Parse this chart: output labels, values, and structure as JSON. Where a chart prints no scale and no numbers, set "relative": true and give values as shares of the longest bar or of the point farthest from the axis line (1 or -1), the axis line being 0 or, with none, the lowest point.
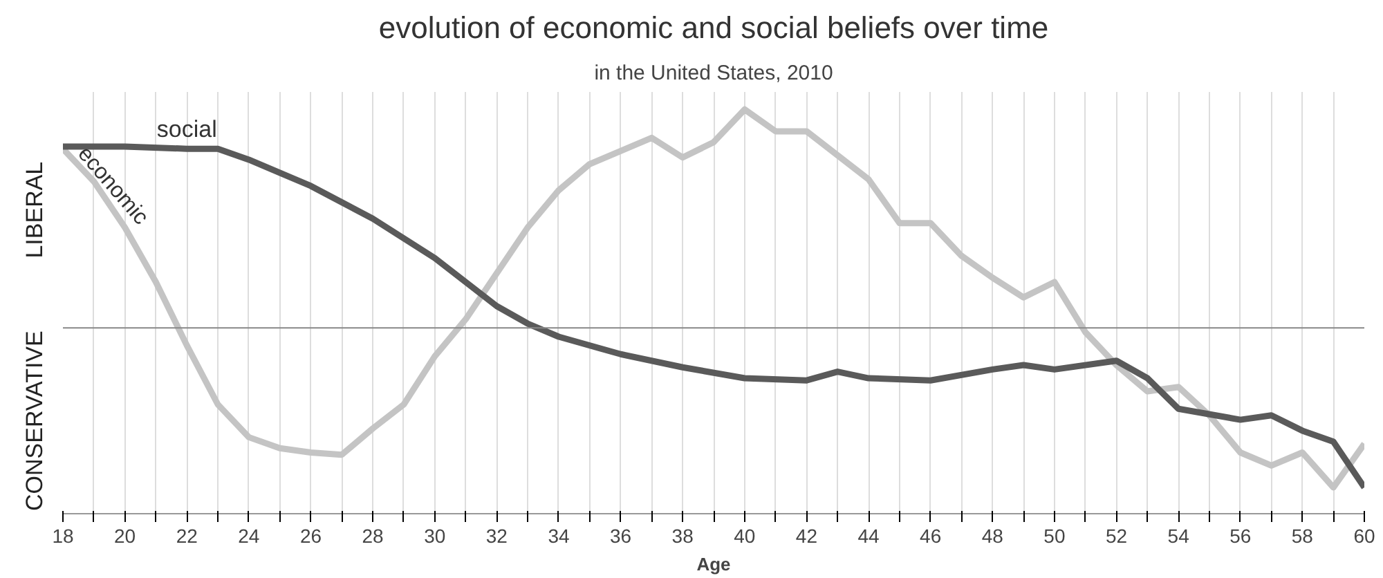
{
  "chart_data": {
    "type": "line",
    "title": "evolution of economic and social beliefs over time",
    "subtitle": "in the United States, 2010",
    "xlabel": "Age",
    "relative": true,
    "grid": "x",
    "line_style": "solid",
    "marker": "none",
    "annotations": [
      "LIBERAL",
      "CONSERVATIVE"
    ],
    "xlim": [
      18,
      60
    ],
    "xticks": [
      18,
      {
        "value": 19,
        "label": null
      },
      20,
      {
        "value": 21,
        "label": null
      },
      22,
      {
        "value": 23,
        "label": null
      },
      24,
      {
        "value": 25,
        "label": null
      },
      26,
      {
        "value": 27,
        "label": null
      },
      28,
      {
        "value": 29,
        "label": null
      },
      30,
      {
        "value": 31,
        "label": null
      },
      32,
      {
        "value": 33,
        "label": null
      },
      34,
      {
        "value": 35,
        "label": null
      },
      36,
      {
        "value": 37,
        "label": null
      },
      38,
      {
        "value": 39,
        "label": null
      },
      40,
      {
        "value": 41,
        "label": null
      },
      42,
      {
        "value": 43,
        "label": null
      },
      44,
      {
        "value": 45,
        "label": null
      },
      46,
      {
        "value": 47,
        "label": null
      },
      48,
      {
        "value": 49,
        "label": null
      },
      50,
      {
        "value": 51,
        "label": null
      },
      52,
      {
        "value": 53,
        "label": null
      },
      54,
      {
        "value": 55,
        "label": null
      },
      56,
      {
        "value": 57,
        "label": null
      },
      58,
      {
        "value": 59,
        "label": null
      },
      60
    ],
    "series": [
      {
        "name": "economic",
        "color": "#c4c4c4",
        "x": [
          18,
          19,
          20,
          21,
          22,
          23,
          24,
          25,
          26,
          27,
          28,
          29,
          30,
          31,
          32,
          33,
          34,
          35,
          36,
          37,
          38,
          39,
          40,
          41,
          42,
          43,
          44,
          45,
          46,
          47,
          48,
          49,
          50,
          51,
          52,
          53,
          54,
          55,
          56,
          57,
          58,
          59,
          60
        ],
        "values": [
          0.82,
          0.67,
          0.46,
          0.21,
          -0.08,
          -0.35,
          -0.5,
          -0.55,
          -0.57,
          -0.58,
          -0.46,
          -0.35,
          -0.13,
          0.04,
          0.25,
          0.46,
          0.63,
          0.75,
          0.81,
          0.87,
          0.78,
          0.85,
          1,
          0.9,
          0.9,
          0.79,
          0.68,
          0.48,
          0.48,
          0.33,
          0.23,
          0.14,
          0.21,
          -0.02,
          -0.17,
          -0.29,
          -0.27,
          -0.4,
          -0.57,
          -0.63,
          -0.57,
          -0.73,
          -0.53
        ]
      },
      {
        "name": "social",
        "color": "#5a5a5a",
        "x": [
          18,
          20,
          22,
          23,
          24,
          26,
          28,
          30,
          32,
          33,
          34,
          36,
          38,
          40,
          42,
          43,
          44,
          46,
          48,
          49,
          50,
          52,
          53,
          54,
          56,
          57,
          58,
          59,
          60
        ],
        "values": [
          0.83,
          0.83,
          0.82,
          0.82,
          0.77,
          0.65,
          0.5,
          0.32,
          0.1,
          0.02,
          -0.04,
          -0.12,
          -0.18,
          -0.23,
          -0.24,
          -0.2,
          -0.23,
          -0.24,
          -0.19,
          -0.17,
          -0.19,
          -0.15,
          -0.23,
          -0.37,
          -0.42,
          -0.4,
          -0.47,
          -0.52,
          -0.73
        ]
      }
    ]
  }
}
